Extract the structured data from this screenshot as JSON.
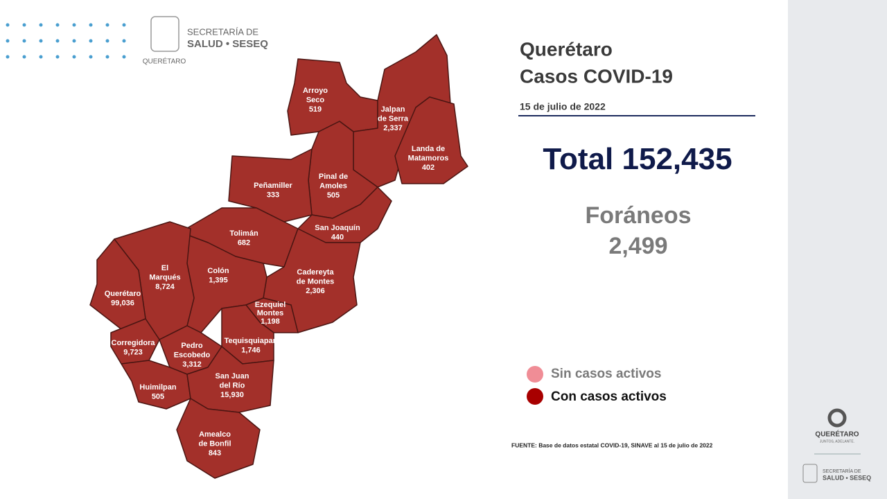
{
  "header": {
    "line1": "SECRETARÍA DE",
    "line2": "SALUD • SESEQ",
    "line3": "QUERÉTARO"
  },
  "title": [
    "Querétaro",
    "Casos COVID-19"
  ],
  "date": "15 de julio de 2022",
  "total": {
    "label": "Total",
    "value": "152,435"
  },
  "foraneos": {
    "label": "Foráneos",
    "value": "2,499"
  },
  "legend": [
    "Sin casos activos",
    "Con casos activos"
  ],
  "source": "FUENTE: Base de datos estatal  COVID-19,  SINAVE  al 15 de julio de 2022",
  "municipalities": [
    {
      "name": [
        "Arroyo",
        "Seco"
      ],
      "cases": "519"
    },
    {
      "name": [
        "Jalpan",
        "de Serra"
      ],
      "cases": "2,337"
    },
    {
      "name": [
        "Landa de",
        "Matamoros"
      ],
      "cases": "402"
    },
    {
      "name": [
        "Pinal de",
        "Amoles"
      ],
      "cases": "505"
    },
    {
      "name": [
        "Peñamiller"
      ],
      "cases": "333"
    },
    {
      "name": [
        "San Joaquín"
      ],
      "cases": "440"
    },
    {
      "name": [
        "Tolimán"
      ],
      "cases": "682"
    },
    {
      "name": [
        "Cadereyta",
        "de Montes"
      ],
      "cases": "2,306"
    },
    {
      "name": [
        "Colón"
      ],
      "cases": "1,395"
    },
    {
      "name": [
        "El",
        "Marqués"
      ],
      "cases": "8,724"
    },
    {
      "name": [
        "Querétaro"
      ],
      "cases": "99,036"
    },
    {
      "name": [
        "Corregidora"
      ],
      "cases": "9,723"
    },
    {
      "name": [
        "Ezequiel",
        "Montes"
      ],
      "cases": "1,198"
    },
    {
      "name": [
        "Tequisquiapan"
      ],
      "cases": "1,746"
    },
    {
      "name": [
        "Pedro",
        "Escobedo"
      ],
      "cases": "3,312"
    },
    {
      "name": [
        "Huimilpan"
      ],
      "cases": "505"
    },
    {
      "name": [
        "San Juan",
        "del Río"
      ],
      "cases": "15,930"
    },
    {
      "name": [
        "Amealco",
        "de Bonfil"
      ],
      "cases": "843"
    }
  ],
  "footer": {
    "brand": "QUERÉTARO",
    "slogan": "JUNTOS, ADELANTE.",
    "line1": "SECRETARÍA DE",
    "line2": "SALUD • SESEQ"
  }
}
